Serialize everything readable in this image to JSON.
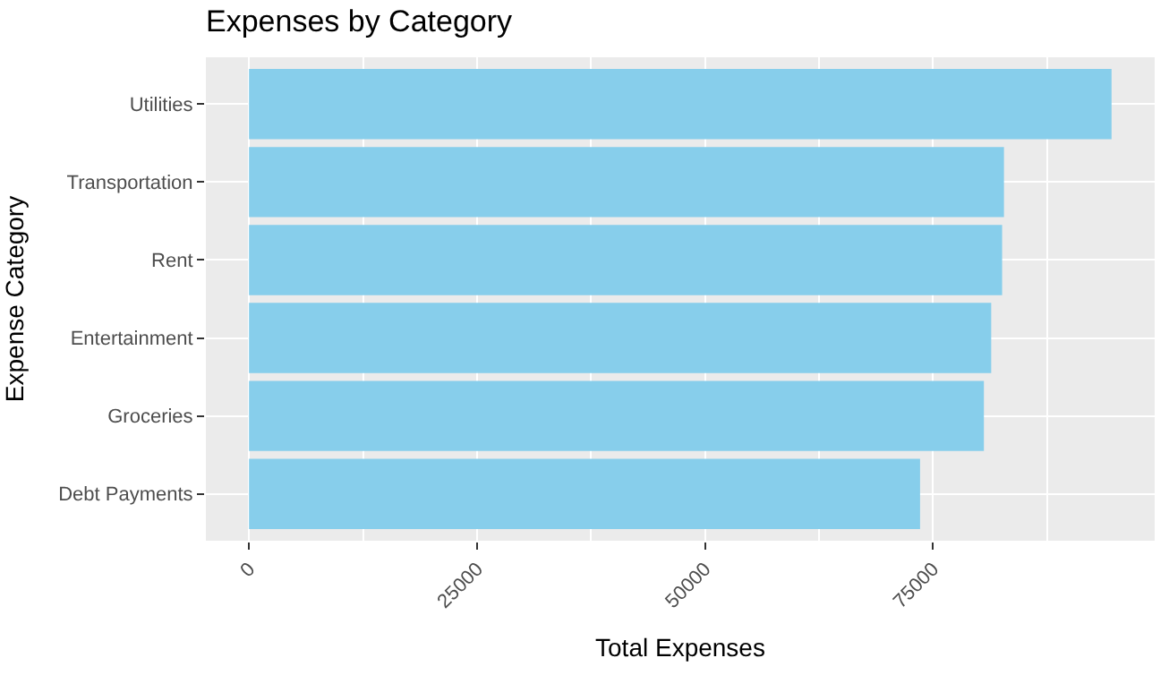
{
  "chart_data": {
    "type": "bar",
    "orientation": "horizontal",
    "title": "Expenses by Category",
    "xlabel": "Total Expenses",
    "ylabel": "Expense Category",
    "categories": [
      "Utilities",
      "Transportation",
      "Rent",
      "Entertainment",
      "Groceries",
      "Debt Payments"
    ],
    "values": [
      94600,
      82800,
      82600,
      81400,
      80600,
      73600
    ],
    "color": "#87ceeb",
    "xlim": [
      -4730,
      99330
    ],
    "xticks": [
      0,
      {
        "value": 12500,
        "label": null
      },
      25000,
      {
        "value": 37500,
        "label": null
      },
      50000,
      {
        "value": 62500,
        "label": null
      },
      75000,
      {
        "value": 87500,
        "label": null
      }
    ],
    "grid": true,
    "legend": false
  }
}
